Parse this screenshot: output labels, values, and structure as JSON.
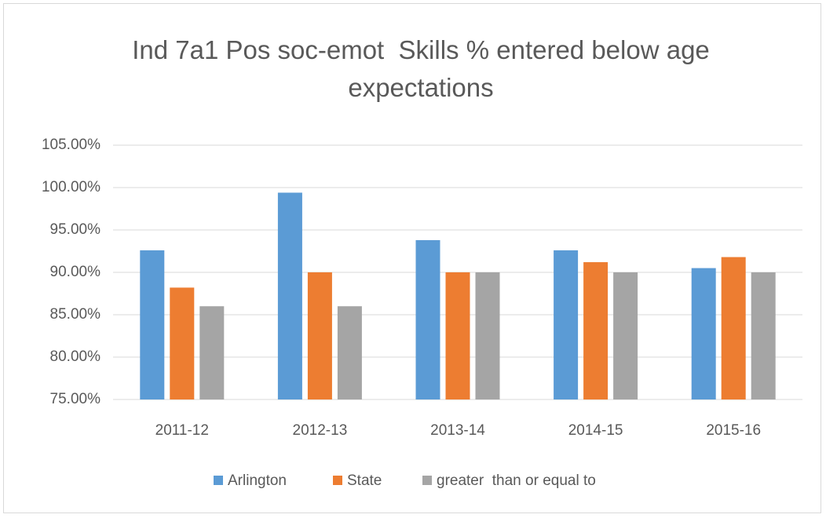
{
  "chart_data": {
    "type": "bar",
    "title": "Ind 7a1 Pos soc-emot  Skills % entered below age expectations",
    "categories": [
      "2011-12",
      "2012-13",
      "2013-14",
      "2014-15",
      "2015-16"
    ],
    "series": [
      {
        "name": "Arlington",
        "color": "#5b9bd5",
        "values": [
          92.6,
          99.4,
          93.8,
          92.6,
          90.5
        ]
      },
      {
        "name": "State",
        "color": "#ed7d31",
        "values": [
          88.2,
          90,
          90,
          91.2,
          91.8
        ]
      },
      {
        "name": "greater  than or equal to",
        "color": "#a5a5a5",
        "values": [
          86,
          86,
          90,
          90,
          90
        ]
      }
    ],
    "ylim": [
      75,
      105
    ],
    "yticks": [
      {
        "value": 75,
        "label": "75.00%"
      },
      {
        "value": 80,
        "label": "80.00%"
      },
      {
        "value": 85,
        "label": "85.00%"
      },
      {
        "value": 90,
        "label": "90.00%"
      },
      {
        "value": 95,
        "label": "95.00%"
      },
      {
        "value": 100,
        "label": "100.00%"
      },
      {
        "value": 105,
        "label": "105.00%"
      }
    ],
    "grid": true,
    "legend": "bottom"
  }
}
